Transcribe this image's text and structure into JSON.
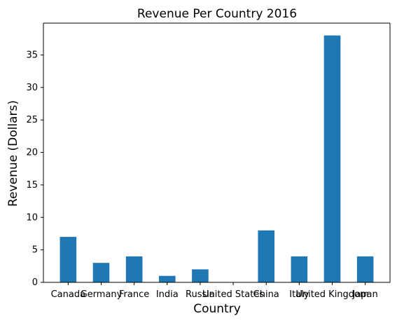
{
  "chart_data": {
    "type": "bar",
    "title": "Revenue Per Country 2016",
    "xlabel": "Country",
    "ylabel": "Revenue (Dollars)",
    "categories": [
      "Canada",
      "Germany",
      "France",
      "India",
      "Russia",
      "United States",
      "China",
      "Italy",
      "United Kingdom",
      "Japan"
    ],
    "values": [
      7,
      3,
      4,
      1,
      2,
      0,
      8,
      4,
      38,
      4
    ],
    "ylim": [
      0,
      39.9
    ],
    "yticks": [
      0,
      5,
      10,
      15,
      20,
      25,
      30,
      35
    ],
    "bar_color": "#1f77b4",
    "grid": false,
    "legend": "none"
  }
}
